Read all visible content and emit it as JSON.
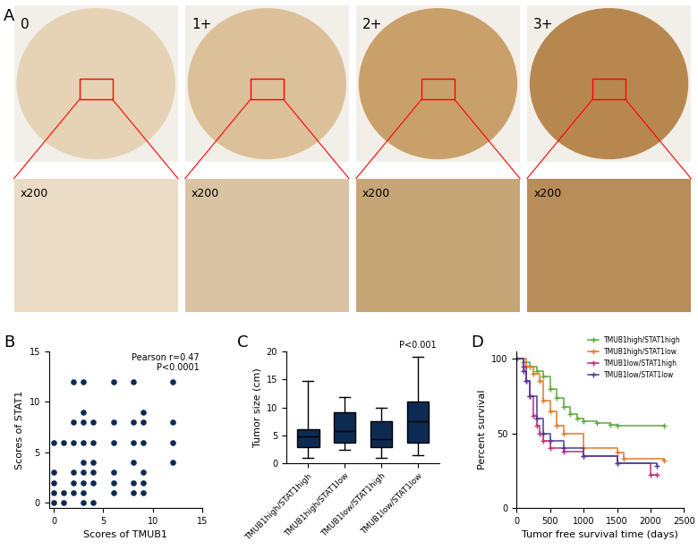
{
  "chart_data": [
    {
      "type": "image",
      "panel": "A",
      "labels": [
        "0",
        "1+",
        "2+",
        "3+"
      ],
      "magnification": "x200"
    },
    {
      "type": "scatter",
      "panel": "B",
      "x_label": "Scores of TMUB1",
      "y_label": "Scores of STAT1",
      "annotations": [
        "Pearson r=0.47",
        "P<0.0001"
      ],
      "color": "#0d2b52",
      "marker": "o",
      "x": [
        0,
        0,
        0,
        0,
        0,
        1,
        1,
        1,
        2,
        2,
        2,
        2,
        2,
        2,
        3,
        3,
        3,
        3,
        3,
        3,
        3,
        3,
        3,
        4,
        4,
        4,
        4,
        4,
        4,
        6,
        6,
        6,
        6,
        6,
        6,
        8,
        8,
        8,
        8,
        8,
        8,
        9,
        9,
        9,
        9,
        9,
        9,
        12,
        12,
        12,
        12
      ],
      "y": [
        0,
        1,
        2,
        3,
        6,
        0,
        1,
        6,
        1,
        2,
        3,
        6,
        8,
        12,
        0,
        1,
        2,
        3,
        4,
        6,
        8,
        9,
        12,
        0,
        2,
        3,
        4,
        6,
        8,
        1,
        2,
        3,
        6,
        8,
        12,
        1,
        2,
        4,
        6,
        8,
        12,
        1,
        2,
        3,
        6,
        8,
        9,
        4,
        6,
        8,
        12
      ],
      "xlim": [
        -0.5,
        15
      ],
      "ylim": [
        -0.5,
        15
      ],
      "xticks": [
        0,
        5,
        10,
        15
      ],
      "yticks": [
        0,
        5,
        10,
        15
      ]
    },
    {
      "type": "box",
      "panel": "C",
      "y_label": "Tumor size (cm)",
      "annotations": [
        "P<0.001"
      ],
      "color": "#0d2b52",
      "categories": [
        "TMUB1high/STAT1high",
        "TMUB1high/STAT1low",
        "TMUB1low/STAT1high",
        "TMUB1low/STAT1low"
      ],
      "boxes": [
        {
          "min": 1,
          "q1": 2.8,
          "median": 4.8,
          "q3": 6,
          "max": 14.7
        },
        {
          "min": 2.4,
          "q1": 3.7,
          "median": 5.8,
          "q3": 9.2,
          "max": 11.8
        },
        {
          "min": 1,
          "q1": 2.8,
          "median": 4.3,
          "q3": 7.5,
          "max": 10
        },
        {
          "min": 1.5,
          "q1": 3.7,
          "median": 7.5,
          "q3": 11,
          "max": 19
        }
      ],
      "ylim": [
        0,
        20
      ],
      "yticks": [
        0,
        5,
        10,
        15,
        20
      ]
    },
    {
      "type": "line",
      "panel": "D",
      "x_label": "Tumor free survival time (days)",
      "y_label": "Percent survival",
      "legend": "upper right",
      "line_style": "steps",
      "marker": "+",
      "series": [
        {
          "name": "TMUB1high/STAT1high",
          "color": "#5aab3c",
          "x": [
            0,
            100,
            200,
            300,
            400,
            500,
            600,
            700,
            800,
            900,
            1000,
            1200,
            1400,
            1500,
            2200
          ],
          "values": [
            100,
            98,
            95,
            92,
            88,
            80,
            74,
            68,
            63,
            60,
            58,
            57,
            56,
            55,
            55
          ]
        },
        {
          "name": "TMUB1high/STAT1low",
          "color": "#e0792a",
          "x": [
            0,
            150,
            250,
            350,
            400,
            500,
            600,
            700,
            1000,
            1500,
            1600,
            2200
          ],
          "values": [
            100,
            95,
            90,
            85,
            72,
            65,
            55,
            50,
            40,
            37,
            33,
            32
          ]
        },
        {
          "name": "TMUB1low/STAT1high",
          "color": "#c3287a",
          "x": [
            0,
            100,
            150,
            200,
            250,
            300,
            350,
            400,
            500,
            700,
            1000,
            1500,
            2000,
            2100
          ],
          "values": [
            100,
            95,
            85,
            75,
            62,
            55,
            50,
            45,
            40,
            38,
            35,
            30,
            22,
            22
          ]
        },
        {
          "name": "TMUB1low/STAT1low",
          "color": "#4a3a9a",
          "x": [
            0,
            100,
            150,
            200,
            300,
            400,
            500,
            700,
            1000,
            1500,
            2100
          ],
          "values": [
            100,
            92,
            85,
            75,
            60,
            50,
            45,
            40,
            35,
            30,
            28
          ]
        }
      ],
      "xlim": [
        0,
        2500
      ],
      "ylim": [
        0,
        105
      ],
      "xticks": [
        0,
        500,
        1000,
        1500,
        2000,
        2500
      ],
      "yticks": [
        0,
        50,
        100
      ]
    }
  ]
}
